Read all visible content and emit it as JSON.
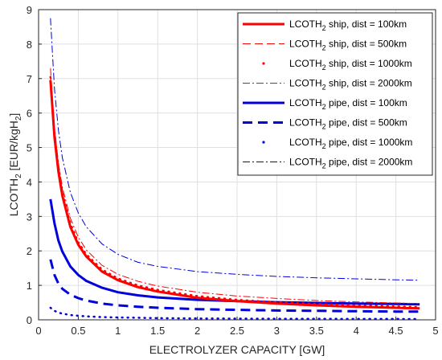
{
  "chart_data": {
    "type": "line",
    "xlabel": "ELECTROLYZER CAPACITY [GW]",
    "ylabel": {
      "main": "LCOTH",
      "sub": "2",
      "unit_pre": " [EUR/kgH",
      "unit_sub": "2",
      "unit_post": "]"
    },
    "xlim": [
      0,
      5
    ],
    "ylim": [
      0,
      9
    ],
    "xticks": [
      "0",
      "0.5",
      "1",
      "1.5",
      "2",
      "2.5",
      "3",
      "3.5",
      "4",
      "4.5",
      "5"
    ],
    "yticks": [
      "0",
      "1",
      "2",
      "3",
      "4",
      "5",
      "6",
      "7",
      "8",
      "9"
    ],
    "grid": true,
    "legend_position": "top-right",
    "x": [
      0.15,
      0.2,
      0.25,
      0.3,
      0.4,
      0.5,
      0.6,
      0.8,
      1.0,
      1.25,
      1.5,
      2.0,
      2.5,
      3.0,
      3.5,
      4.0,
      4.5,
      4.8
    ],
    "series": [
      {
        "name": "ship, dist = 100km",
        "color": "#ff0000",
        "style": "solid-thick",
        "y": [
          6.95,
          5.3,
          4.3,
          3.6,
          2.7,
          2.18,
          1.84,
          1.4,
          1.15,
          0.95,
          0.82,
          0.64,
          0.54,
          0.47,
          0.42,
          0.38,
          0.35,
          0.33
        ]
      },
      {
        "name": "ship, dist = 500km",
        "color": "#ff0000",
        "style": "dashed-thin",
        "y": [
          7.0,
          5.35,
          4.35,
          3.65,
          2.75,
          2.22,
          1.87,
          1.43,
          1.17,
          0.97,
          0.84,
          0.66,
          0.55,
          0.48,
          0.43,
          0.39,
          0.36,
          0.34
        ]
      },
      {
        "name": "ship, dist = 1000km",
        "color": "#ff0000",
        "style": "dotted",
        "y": [
          7.05,
          5.4,
          4.4,
          3.7,
          2.8,
          2.25,
          1.9,
          1.46,
          1.2,
          1.0,
          0.87,
          0.69,
          0.58,
          0.51,
          0.46,
          0.42,
          0.39,
          0.37
        ]
      },
      {
        "name": "ship, dist = 2000km",
        "color": "#ff0000",
        "style": "dashdot",
        "y": [
          7.3,
          5.6,
          4.55,
          3.85,
          2.95,
          2.4,
          2.03,
          1.58,
          1.32,
          1.12,
          0.98,
          0.8,
          0.69,
          0.62,
          0.56,
          0.52,
          0.49,
          0.47
        ]
      },
      {
        "name": "pipe, dist = 100km",
        "color": "#0000dd",
        "style": "solid-thick",
        "y": [
          3.5,
          2.8,
          2.3,
          1.98,
          1.55,
          1.3,
          1.13,
          0.93,
          0.8,
          0.71,
          0.65,
          0.58,
          0.54,
          0.51,
          0.49,
          0.47,
          0.46,
          0.45
        ]
      },
      {
        "name": "pipe, dist = 500km",
        "color": "#0000dd",
        "style": "dashed-thick",
        "y": [
          1.75,
          1.3,
          1.05,
          0.9,
          0.73,
          0.63,
          0.56,
          0.47,
          0.42,
          0.38,
          0.35,
          0.31,
          0.29,
          0.27,
          0.26,
          0.25,
          0.24,
          0.24
        ]
      },
      {
        "name": "pipe, dist = 1000km",
        "color": "#0000dd",
        "style": "dotted",
        "y": [
          0.35,
          0.26,
          0.21,
          0.18,
          0.14,
          0.12,
          0.1,
          0.08,
          0.07,
          0.06,
          0.05,
          0.04,
          0.035,
          0.03,
          0.03,
          0.025,
          0.025,
          0.02
        ]
      },
      {
        "name": "pipe, dist = 2000km",
        "color": "#0000dd",
        "style": "dashdot",
        "y": [
          8.75,
          6.7,
          5.5,
          4.7,
          3.7,
          3.1,
          2.7,
          2.2,
          1.9,
          1.67,
          1.55,
          1.4,
          1.32,
          1.26,
          1.22,
          1.19,
          1.16,
          1.15
        ]
      }
    ],
    "legend_prefix": "LCOTH",
    "legend_prefix_sub": "2"
  }
}
